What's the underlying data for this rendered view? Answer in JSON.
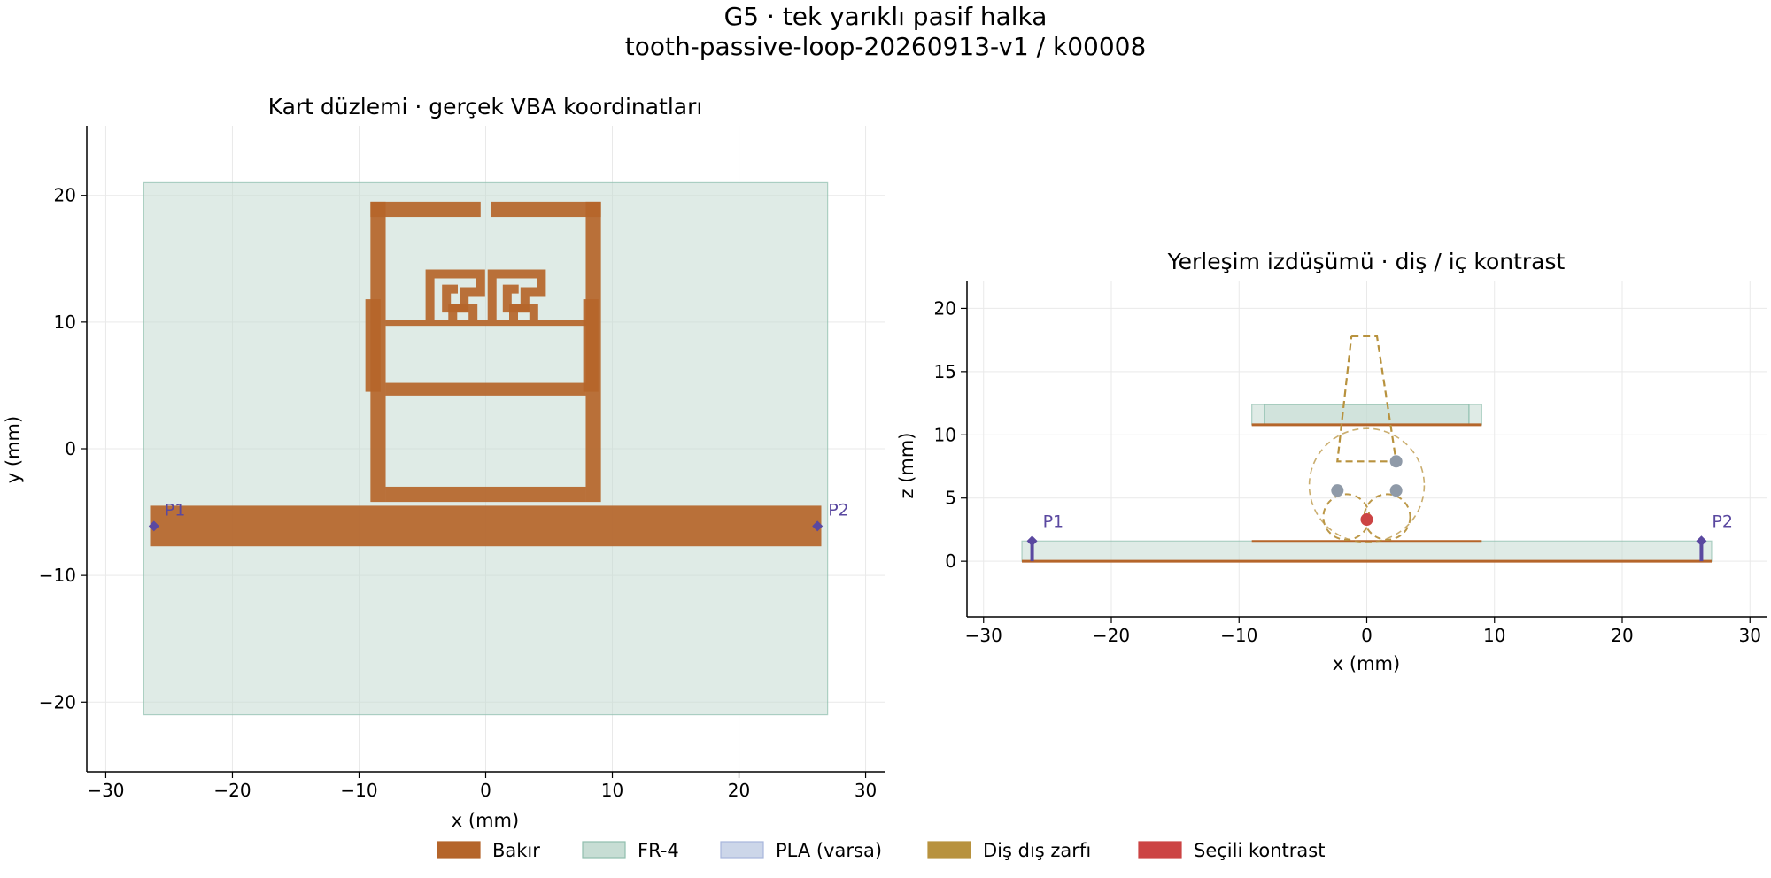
{
  "figure": {
    "title_line1": "G5 · tek yarıklı pasif halka",
    "title_line2": "tooth-passive-loop-20260913-v1 / k00008"
  },
  "colors": {
    "copper": "#b5652a",
    "fr4_fill": "#c4dbd2",
    "fr4_edge": "#8fbfae",
    "pla_fill": "#c9d4e8",
    "pla_edge": "#a7b6dc",
    "envelope": "#b8923e",
    "contrast": "#cc4444",
    "port": "#5a48a0",
    "node": "#8f9aa8",
    "grid": "#e9e9e9"
  },
  "legend": [
    {
      "label": "Bakır",
      "color": "#b5652a",
      "edge": "#b5652a",
      "alpha": 1
    },
    {
      "label": "FR-4",
      "color": "#c4dbd2",
      "edge": "#8fbfae",
      "alpha": 1
    },
    {
      "label": "PLA (varsa)",
      "color": "#c9d4e8",
      "edge": "#a7b6dc",
      "alpha": 1
    },
    {
      "label": "Diş dış zarfı",
      "color": "#b8923e",
      "edge": "#b8923e",
      "alpha": 1
    },
    {
      "label": "Seçili kontrast",
      "color": "#cc4444",
      "edge": "#cc4444",
      "alpha": 1
    }
  ],
  "chart_data": [
    {
      "type": "layout",
      "title": "Kart düzlemi · gerçek VBA koordinatları",
      "xlabel": "x (mm)",
      "ylabel": "y (mm)",
      "xlim": [
        -31.5,
        31.5
      ],
      "ylim": [
        -25.5,
        25.5
      ],
      "xticks": [
        -30,
        -20,
        -10,
        0,
        10,
        20,
        30
      ],
      "yticks": [
        -20,
        -10,
        0,
        10,
        20
      ],
      "grid": true,
      "substrate": {
        "x": [
          -27,
          27
        ],
        "y": [
          -21,
          21
        ]
      },
      "copper_rects": [
        {
          "x": [
            -26.5,
            26.5
          ],
          "y": [
            -7.7,
            -4.5
          ]
        },
        {
          "x": [
            -9.1,
            -7.9
          ],
          "y": [
            -4.2,
            19.5
          ]
        },
        {
          "x": [
            7.9,
            9.1
          ],
          "y": [
            -4.2,
            19.5
          ]
        },
        {
          "x": [
            -9.1,
            -0.4
          ],
          "y": [
            18.3,
            19.5
          ]
        },
        {
          "x": [
            0.4,
            9.1
          ],
          "y": [
            18.3,
            19.5
          ]
        },
        {
          "x": [
            -7.9,
            7.9
          ],
          "y": [
            -4.2,
            -3.0
          ]
        },
        {
          "x": [
            -7.9,
            7.9
          ],
          "y": [
            4.2,
            5.2
          ]
        },
        {
          "x": [
            -7.9,
            7.9
          ],
          "y": [
            9.7,
            10.2
          ]
        },
        {
          "x": [
            -9.5,
            -8.3
          ],
          "y": [
            4.5,
            11.8
          ]
        },
        {
          "x": [
            7.7,
            8.9
          ],
          "y": [
            4.5,
            11.8
          ]
        }
      ],
      "meander_paths": [
        [
          [
            -4.4,
            10.2
          ],
          [
            -4.4,
            13.8
          ],
          [
            -0.4,
            13.8
          ],
          [
            -0.4,
            12.4
          ],
          [
            -1.7,
            12.4
          ],
          [
            -1.7,
            11.1
          ],
          [
            -3.1,
            11.1
          ],
          [
            -3.1,
            12.6
          ],
          [
            -2.2,
            12.6
          ]
        ],
        [
          [
            -2.6,
            10.2
          ],
          [
            -2.6,
            11.1
          ],
          [
            -1.0,
            11.1
          ],
          [
            -1.0,
            10.2
          ]
        ],
        [
          [
            0.5,
            10.2
          ],
          [
            0.5,
            13.8
          ],
          [
            4.4,
            13.8
          ],
          [
            4.4,
            12.4
          ],
          [
            3.1,
            12.4
          ],
          [
            3.1,
            11.1
          ],
          [
            1.7,
            11.1
          ],
          [
            1.7,
            12.6
          ],
          [
            2.6,
            12.6
          ]
        ],
        [
          [
            2.2,
            10.2
          ],
          [
            2.2,
            11.1
          ],
          [
            3.8,
            11.1
          ],
          [
            3.8,
            10.2
          ]
        ]
      ],
      "ports": [
        {
          "name": "P1",
          "x": -26.2,
          "y": -6.1
        },
        {
          "name": "P2",
          "x": 26.2,
          "y": -6.1
        }
      ]
    },
    {
      "type": "layout",
      "title": "Yerleşim izdüşümü · diş / iç kontrast",
      "xlabel": "x (mm)",
      "ylabel": "z (mm)",
      "xlim": [
        -31.3,
        31.3
      ],
      "ylim": [
        -4.4,
        22.2
      ],
      "xticks": [
        -30,
        -20,
        -10,
        0,
        10,
        20,
        30
      ],
      "yticks": [
        0,
        5,
        10,
        15,
        20
      ],
      "grid": true,
      "bottom_board": {
        "x": [
          -27,
          27
        ],
        "z": [
          0,
          1.6
        ]
      },
      "bottom_copper": {
        "x": [
          -27,
          27
        ],
        "z": 0
      },
      "top_trace": {
        "x": [
          -9,
          9
        ],
        "z": 1.6
      },
      "upper_board": {
        "x": [
          -9,
          9
        ],
        "z": [
          10.8,
          12.4
        ]
      },
      "upper_board_inner": {
        "x": [
          -8,
          8
        ],
        "z": [
          10.8,
          12.4
        ]
      },
      "upper_copper": {
        "x": [
          -9,
          9
        ],
        "z": 10.8
      },
      "tooth_outline": [
        [
          -1.2,
          17.8
        ],
        [
          0.8,
          17.8
        ],
        [
          2.3,
          7.9
        ],
        [
          -2.3,
          7.9
        ],
        [
          -1.2,
          17.8
        ]
      ],
      "circles": [
        {
          "cx": 0,
          "cy": 6.0,
          "r": 4.5
        },
        {
          "cx": -1.6,
          "cy": 3.5,
          "r": 1.8
        },
        {
          "cx": 1.6,
          "cy": 3.5,
          "r": 1.8
        }
      ],
      "nodes": [
        {
          "x": 2.3,
          "z": 7.9
        },
        {
          "x": -2.3,
          "z": 5.6
        },
        {
          "x": 2.3,
          "z": 5.6
        }
      ],
      "contrast_point": {
        "x": 0,
        "z": 3.3
      },
      "ports": [
        {
          "name": "P1",
          "x": -26.2,
          "z": 1.6
        },
        {
          "name": "P2",
          "x": 26.2,
          "z": 1.6
        }
      ]
    }
  ]
}
